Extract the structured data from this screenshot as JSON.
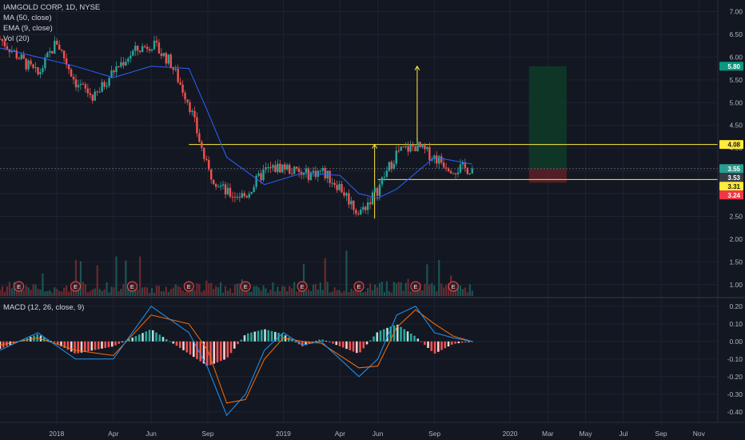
{
  "legend": {
    "symbol": "IAMGOLD CORP, 1D, NYSE",
    "ma": "MA (50, close)",
    "ema": "EMA (9, close)",
    "vol": "Vol (20)",
    "macd": "MACD (12, 26, close, 9)"
  },
  "chart_data": [
    {
      "type": "line",
      "pane": "price",
      "y_axis": {
        "ticks": [
          "7.00",
          "6.50",
          "6.00",
          "5.50",
          "5.00",
          "4.50",
          "4.00",
          "3.50",
          "3.00",
          "2.50",
          "2.00",
          "1.50",
          "1.00"
        ],
        "ylim": [
          0.75,
          7.15
        ]
      },
      "x_axis": {
        "ticks": [
          "2018",
          "Apr",
          "Jun",
          "Sep",
          "2019",
          "Apr",
          "Jun",
          "Sep",
          "2020",
          "Mar",
          "May",
          "Jul",
          "Sep",
          "Nov"
        ],
        "range": [
          "2017-10",
          "2020-12"
        ]
      },
      "series": [
        {
          "name": "price",
          "x": [
            "2017-10",
            "2017-11",
            "2017-12",
            "2018-01",
            "2018-02",
            "2018-03",
            "2018-04",
            "2018-05",
            "2018-06",
            "2018-07",
            "2018-08",
            "2018-09",
            "2018-10",
            "2018-11",
            "2018-12",
            "2019-01",
            "2019-02",
            "2019-03",
            "2019-04",
            "2019-05",
            "2019-06",
            "2019-07",
            "2019-08",
            "2019-09",
            "2019-10",
            "2019-11"
          ],
          "y": [
            6.4,
            6.0,
            5.6,
            6.35,
            5.45,
            5.1,
            5.7,
            6.1,
            6.3,
            5.9,
            5.0,
            3.5,
            3.0,
            2.95,
            3.5,
            3.6,
            3.4,
            3.5,
            3.15,
            2.55,
            3.1,
            3.9,
            4.05,
            3.8,
            3.55,
            3.55
          ]
        },
        {
          "name": "MA (50, close)",
          "x": [
            "2017-10",
            "2017-12",
            "2018-02",
            "2018-04",
            "2018-06",
            "2018-08",
            "2018-09",
            "2018-10",
            "2018-12",
            "2019-02",
            "2019-04",
            "2019-05",
            "2019-06",
            "2019-07",
            "2019-09",
            "2019-11"
          ],
          "y": [
            6.2,
            6.0,
            5.8,
            5.55,
            5.8,
            5.75,
            4.8,
            3.8,
            3.2,
            3.45,
            3.4,
            3.0,
            2.9,
            3.1,
            3.8,
            3.65
          ]
        }
      ],
      "price_labels": [
        {
          "value": "5.80",
          "color": "#089981"
        },
        {
          "value": "4.08",
          "color": "#ffeb3b"
        },
        {
          "value": "3.55",
          "color": "#2a9d8f"
        },
        {
          "value": "3.53",
          "color": "#363a45"
        },
        {
          "value": "3.31",
          "color": "#ffeb3b"
        },
        {
          "value": "3.24",
          "color": "#f23645"
        }
      ],
      "annotations": {
        "resistance": 4.08,
        "support": 3.31,
        "target": 5.8,
        "stop": 3.24,
        "entry": 3.55,
        "position_start": "2020-02",
        "position_end": "2020-04"
      },
      "volume_bar_count": 200,
      "earnings_marker_label": "E",
      "earnings_dates": [
        "2017-11",
        "2018-02",
        "2018-05",
        "2018-08",
        "2018-11",
        "2019-02",
        "2019-05",
        "2019-08",
        "2019-10"
      ]
    },
    {
      "type": "line",
      "pane": "macd",
      "y_axis": {
        "ticks": [
          "0.20",
          "0.10",
          "0.00",
          "-0.10",
          "-0.20",
          "-0.30",
          "-0.40"
        ],
        "ylim": [
          -0.46,
          0.24
        ]
      },
      "series": [
        {
          "name": "macd",
          "x": [
            "2017-10",
            "2017-12",
            "2018-02",
            "2018-04",
            "2018-06",
            "2018-08",
            "2018-09",
            "2018-10",
            "2018-11",
            "2018-12",
            "2019-01",
            "2019-02",
            "2019-03",
            "2019-05",
            "2019-06",
            "2019-07",
            "2019-08",
            "2019-09",
            "2019-10",
            "2019-11"
          ],
          "y": [
            -0.05,
            0.05,
            -0.1,
            -0.1,
            0.2,
            0.05,
            -0.15,
            -0.42,
            -0.3,
            -0.05,
            0.05,
            -0.02,
            0.0,
            -0.2,
            -0.1,
            0.15,
            0.2,
            0.05,
            0.02,
            0.0
          ]
        },
        {
          "name": "signal",
          "x": [
            "2017-10",
            "2017-12",
            "2018-02",
            "2018-04",
            "2018-06",
            "2018-08",
            "2018-09",
            "2018-10",
            "2018-11",
            "2018-12",
            "2019-01",
            "2019-02",
            "2019-03",
            "2019-05",
            "2019-06",
            "2019-07",
            "2019-08",
            "2019-09",
            "2019-10",
            "2019-11"
          ],
          "y": [
            -0.02,
            0.02,
            -0.05,
            -0.08,
            0.15,
            0.1,
            -0.05,
            -0.35,
            -0.33,
            -0.1,
            0.02,
            0.0,
            -0.01,
            -0.15,
            -0.14,
            0.08,
            0.18,
            0.1,
            0.03,
            0.0
          ]
        }
      ]
    }
  ],
  "colors": {
    "up": "#26a69a",
    "down": "#ef5350",
    "ma": "#2962ff",
    "macd": "#2196f3",
    "signal": "#ff6d00",
    "annotation": "#ffeb3b",
    "hist_pos": "#b2dfdb",
    "hist_pos_strong": "#26a69a",
    "hist_neg": "#ffcdd2",
    "hist_neg_strong": "#ef5350"
  }
}
